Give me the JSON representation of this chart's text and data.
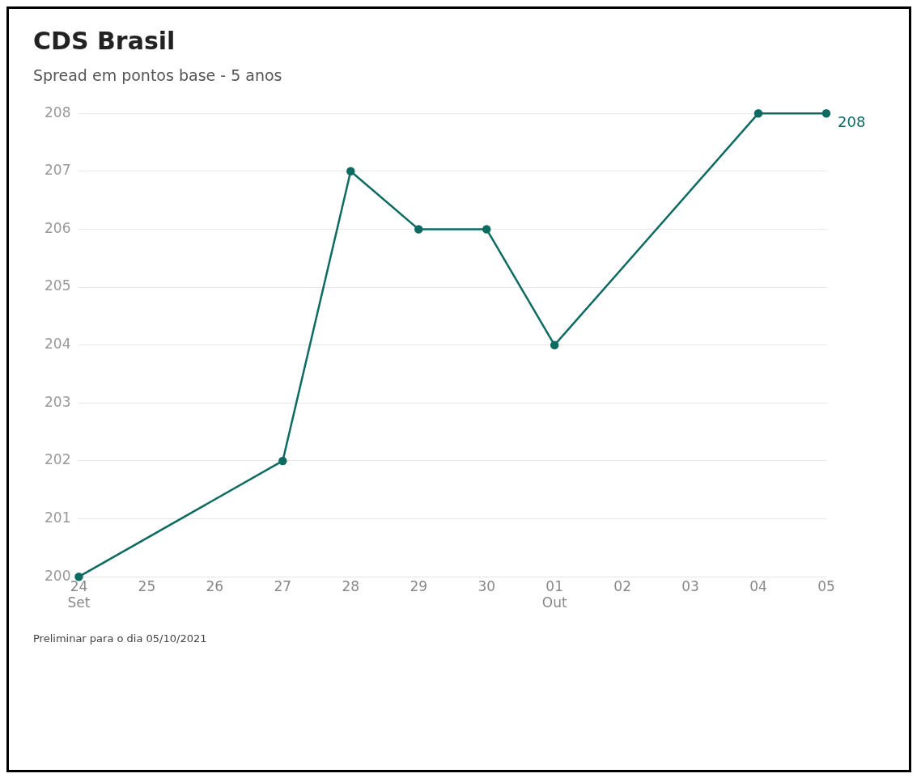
{
  "chart_data": {
    "type": "line",
    "title": "CDS Brasil",
    "subtitle": "Spread em pontos base - 5 anos",
    "x": [
      "2021-09-24",
      "2021-09-27",
      "2021-09-28",
      "2021-09-29",
      "2021-09-30",
      "2021-10-01",
      "2021-10-04",
      "2021-10-05"
    ],
    "series": [
      {
        "color": "#0e6b62",
        "values": [
          200,
          202,
          207,
          206,
          206,
          204,
          208,
          208
        ],
        "value_labels": [
          null,
          null,
          null,
          null,
          null,
          null,
          null,
          "208"
        ]
      }
    ],
    "xlim": [
      "2021-09-24",
      "2021-10-05"
    ],
    "xticks": [
      {
        "value": "2021-09-24",
        "label": "24\nSet"
      },
      {
        "value": "2021-09-25",
        "label": "25"
      },
      {
        "value": "2021-09-26",
        "label": "26"
      },
      {
        "value": "2021-09-27",
        "label": "27"
      },
      {
        "value": "2021-09-28",
        "label": "28"
      },
      {
        "value": "2021-09-29",
        "label": "29"
      },
      {
        "value": "2021-09-30",
        "label": "30"
      },
      {
        "value": "2021-10-01",
        "label": "01\nOut"
      },
      {
        "value": "2021-10-02",
        "label": "02"
      },
      {
        "value": "2021-10-03",
        "label": "03"
      },
      {
        "value": "2021-10-04",
        "label": "04"
      },
      {
        "value": "2021-10-05",
        "label": "05"
      }
    ],
    "ylim": [
      200,
      208
    ],
    "yticks": [
      200,
      201,
      202,
      203,
      204,
      205,
      206,
      207,
      208
    ],
    "grid": "y",
    "marker": "circle",
    "line_style": "solid",
    "legend": false,
    "annotations": [
      "Preliminar para o dia 05/10/2021"
    ]
  }
}
